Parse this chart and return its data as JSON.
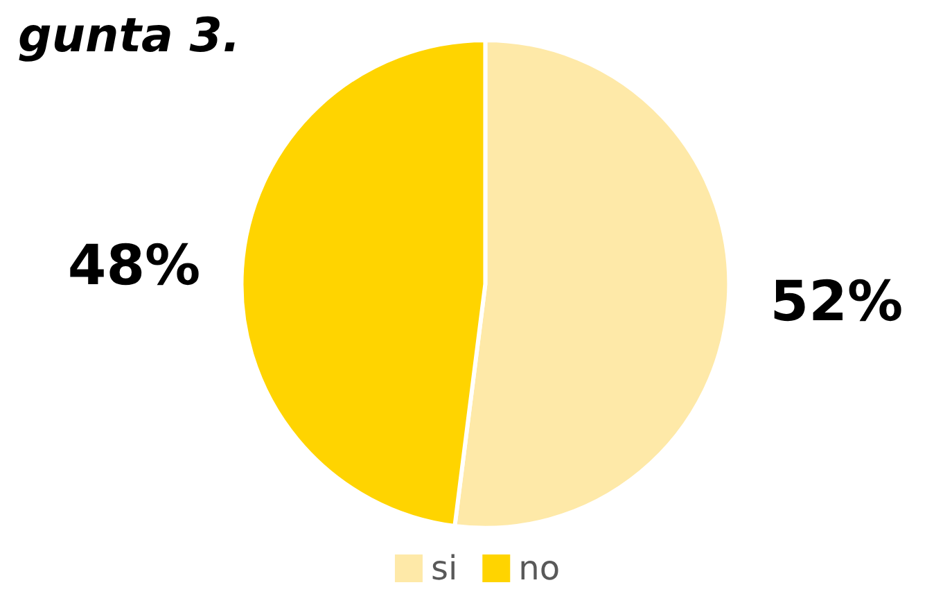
{
  "chart_data": {
    "type": "pie",
    "title": "gunta 3.",
    "categories": [
      "si",
      "no"
    ],
    "values": [
      52,
      48
    ],
    "colors": [
      "#fee9a8",
      "#ffd400"
    ],
    "value_labels": [
      "52%",
      "48%"
    ],
    "legend": "bottom"
  }
}
